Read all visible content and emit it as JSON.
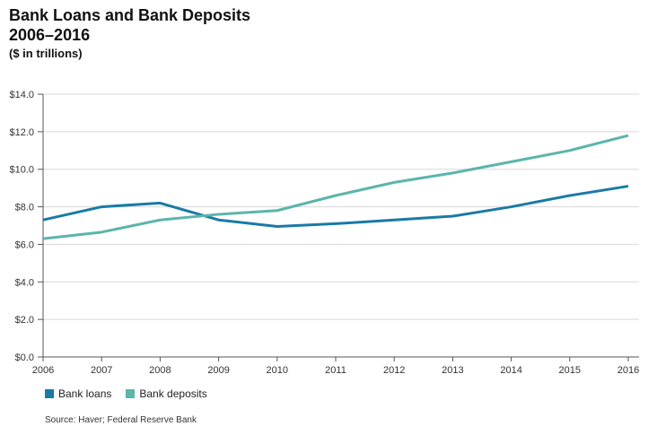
{
  "chart_data": {
    "type": "line",
    "title_line1": "Bank Loans and Bank Deposits",
    "title_line2": "2006–2016",
    "subtitle": "($ in trillions)",
    "x": [
      "2006",
      "2007",
      "2008",
      "2009",
      "2010",
      "2011",
      "2012",
      "2013",
      "2014",
      "2015",
      "2016"
    ],
    "y_ticks": [
      "$0.0",
      "$2.0",
      "$4.0",
      "$6.0",
      "$8.0",
      "$10.0",
      "$12.0",
      "$14.0"
    ],
    "ylim": [
      0,
      14
    ],
    "series": [
      {
        "name": "Bank loans",
        "color": "#1a7aa6",
        "values": [
          7.3,
          8.0,
          8.2,
          7.3,
          6.95,
          7.1,
          7.3,
          7.5,
          8.0,
          8.6,
          9.1
        ]
      },
      {
        "name": "Bank deposits",
        "color": "#5bb5ac",
        "values": [
          6.3,
          6.65,
          7.3,
          7.6,
          7.8,
          8.6,
          9.3,
          9.8,
          10.4,
          11.0,
          11.8
        ]
      }
    ],
    "source": "Source: Haver; Federal Reserve Bank",
    "grid": "horizontal",
    "legend_position": "bottom-left"
  }
}
